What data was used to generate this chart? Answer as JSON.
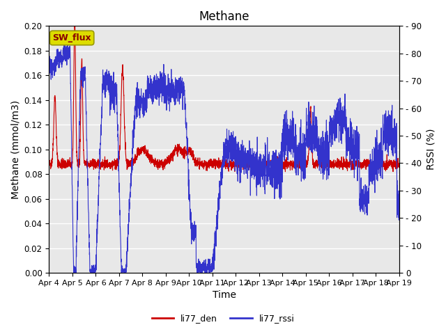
{
  "title": "Methane",
  "xlabel": "Time",
  "ylabel_left": "Methane (mmol/m3)",
  "ylabel_right": "RSSI (%)",
  "ylim_left": [
    0.0,
    0.2
  ],
  "ylim_right": [
    0,
    90
  ],
  "yticks_left": [
    0.0,
    0.02,
    0.04,
    0.06,
    0.08,
    0.1,
    0.12,
    0.14,
    0.16,
    0.18,
    0.2
  ],
  "yticks_right": [
    0,
    10,
    20,
    30,
    40,
    50,
    60,
    70,
    80,
    90
  ],
  "xtick_labels": [
    "Apr 4",
    "Apr 5",
    "Apr 6",
    "Apr 7",
    "Apr 8",
    "Apr 9",
    "Apr 10",
    "Apr 11",
    "Apr 12",
    "Apr 13",
    "Apr 14",
    "Apr 15",
    "Apr 16",
    "Apr 17",
    "Apr 18",
    "Apr 19"
  ],
  "color_red": "#cc0000",
  "color_blue": "#3333cc",
  "legend_label_red": "li77_den",
  "legend_label_blue": "li77_rssi",
  "annotation_text": "SW_flux",
  "annotation_bbox_facecolor": "#dddd00",
  "annotation_bbox_edgecolor": "#999900",
  "background_color": "#e8e8e8",
  "grid_color": "#ffffff",
  "title_fontsize": 12,
  "label_fontsize": 10,
  "tick_fontsize": 8.5
}
